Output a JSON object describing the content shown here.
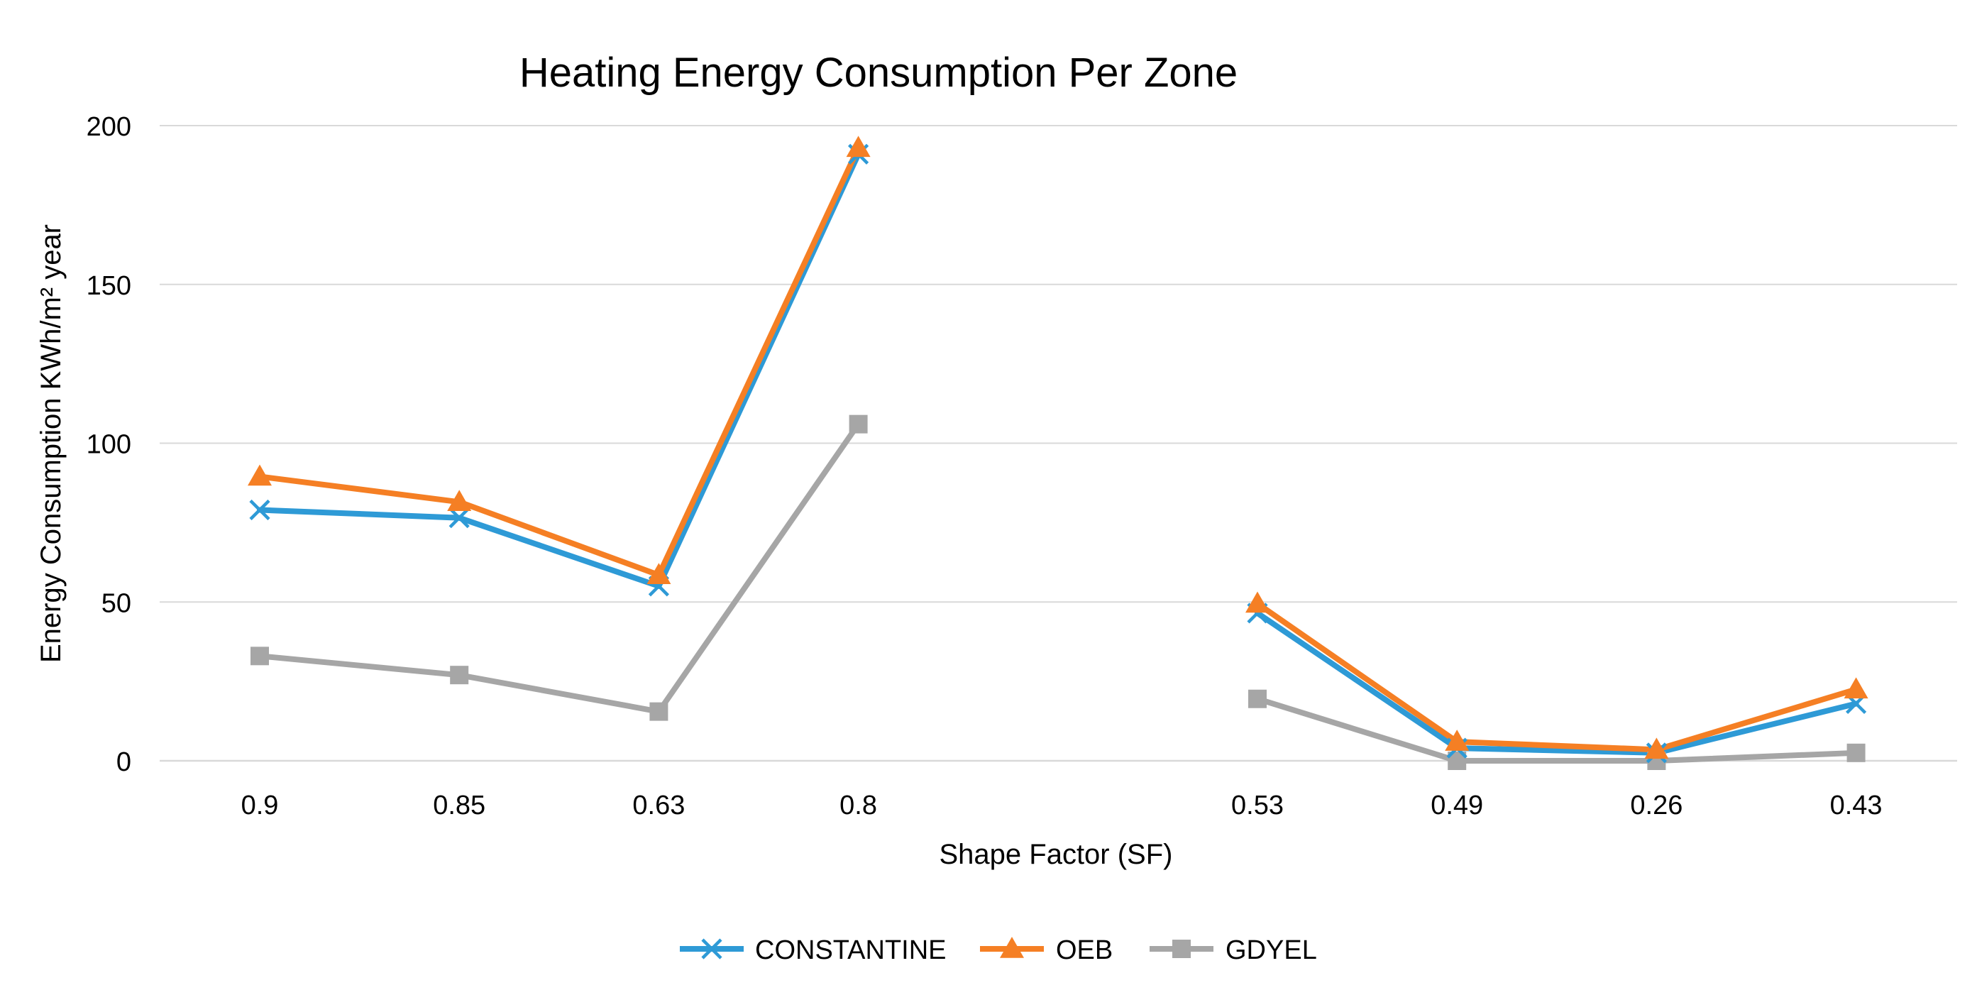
{
  "chart_data": {
    "type": "line",
    "title": "Heating Energy Consumption Per Zone",
    "xlabel": "Shape Factor (SF)",
    "ylabel": "Energy Consumption KWh/m² year",
    "ylim": [
      0,
      200
    ],
    "yticks": [
      0,
      50,
      100,
      150,
      200
    ],
    "grid": true,
    "legend_position": "bottom",
    "categories": [
      "0.9",
      "0.85",
      "0.63",
      "0.8",
      "",
      "0.53",
      "0.49",
      "0.26",
      "0.43"
    ],
    "series": [
      {
        "name": "CONSTANTINE",
        "color": "#2E9AD6",
        "marker": "x",
        "values": [
          79,
          76.5,
          55,
          191,
          null,
          46.5,
          4,
          2.5,
          18
        ]
      },
      {
        "name": "OEB",
        "color": "#F57F24",
        "marker": "triangle",
        "values": [
          89.5,
          81.5,
          58.5,
          193,
          null,
          49.5,
          6,
          3.5,
          22.5
        ]
      },
      {
        "name": "GDYEL",
        "color": "#A6A6A6",
        "marker": "square",
        "values": [
          33,
          27,
          15.5,
          106,
          null,
          19.5,
          0,
          0,
          2.5
        ]
      }
    ]
  }
}
